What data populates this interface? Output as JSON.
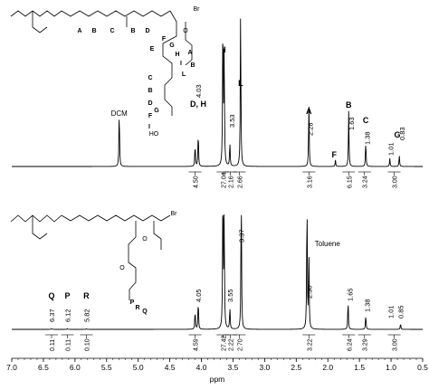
{
  "chart_data": [
    {
      "type": "line",
      "title": "",
      "xlabel": "ppm",
      "ylabel": "",
      "xlim": [
        7.0,
        0.5
      ],
      "x_ticks": [
        "7.0",
        "6.5",
        "6.0",
        "5.5",
        "5.0",
        "4.5",
        "4.0",
        "3.5",
        "3.0",
        "2.5",
        "2.0",
        "1.5",
        "1.0",
        "0.5"
      ],
      "panels": [
        {
          "name": "top",
          "series": [
            {
              "name": "",
              "peaks": [
                {
                  "ppm": 5.3,
                  "height": 0.36
                },
                {
                  "ppm": 4.1,
                  "height": 0.14
                },
                {
                  "ppm": 4.05,
                  "height": 0.22
                },
                {
                  "ppm": 3.66,
                  "height": 0.98
                },
                {
                  "ppm": 3.64,
                  "height": 0.7
                },
                {
                  "ppm": 3.55,
                  "height": 0.15
                },
                {
                  "ppm": 3.38,
                  "height": 0.99
                },
                {
                  "ppm": 2.3,
                  "height": 0.4
                },
                {
                  "ppm": 1.88,
                  "height": 0.04
                },
                {
                  "ppm": 1.67,
                  "height": 0.34
                },
                {
                  "ppm": 1.4,
                  "height": 0.16
                },
                {
                  "ppm": 1.02,
                  "height": 0.05
                },
                {
                  "ppm": 0.87,
                  "height": 0.07
                }
              ]
            }
          ],
          "peak_labels": [
            {
              "ppm": 4.05,
              "value": "4.03"
            },
            {
              "ppm": 3.52,
              "value": "3.53"
            },
            {
              "ppm": 2.28,
              "value": "2.28"
            },
            {
              "ppm": 1.63,
              "value": "1.63"
            },
            {
              "ppm": 1.38,
              "value": "1.38"
            },
            {
              "ppm": 1.01,
              "value": "1.01"
            },
            {
              "ppm": 0.83,
              "value": "0.83"
            }
          ],
          "annotations": [
            {
              "ppm": 5.3,
              "text": "DCM"
            },
            {
              "ppm": 4.05,
              "text": "D, H"
            },
            {
              "ppm": 3.63,
              "text": "I"
            },
            {
              "ppm": 3.38,
              "text": "L"
            },
            {
              "ppm": 2.3,
              "text": "A"
            },
            {
              "ppm": 1.9,
              "text": "F"
            },
            {
              "ppm": 1.67,
              "text": "B"
            },
            {
              "ppm": 1.4,
              "text": "C"
            },
            {
              "ppm": 0.9,
              "text": "G"
            }
          ],
          "integrals": [
            {
              "ppm": 4.1,
              "value": "4.50"
            },
            {
              "ppm": 3.66,
              "value": "27.04"
            },
            {
              "ppm": 3.54,
              "value": "2.16"
            },
            {
              "ppm": 3.4,
              "value": "2.66"
            },
            {
              "ppm": 2.3,
              "value": "3.16"
            },
            {
              "ppm": 1.67,
              "value": "6.15"
            },
            {
              "ppm": 1.42,
              "value": "3.24"
            },
            {
              "ppm": 0.95,
              "value": "3.00"
            }
          ]
        },
        {
          "name": "bottom",
          "series": [
            {
              "name": "",
              "peaks": [
                {
                  "ppm": 6.37,
                  "height": 0.005
                },
                {
                  "ppm": 6.12,
                  "height": 0.005
                },
                {
                  "ppm": 5.82,
                  "height": 0.005
                },
                {
                  "ppm": 4.1,
                  "height": 0.13
                },
                {
                  "ppm": 4.05,
                  "height": 0.2
                },
                {
                  "ppm": 3.66,
                  "height": 0.99
                },
                {
                  "ppm": 3.64,
                  "height": 0.75
                },
                {
                  "ppm": 3.55,
                  "height": 0.15
                },
                {
                  "ppm": 3.37,
                  "height": 0.96
                },
                {
                  "ppm": 2.33,
                  "height": 0.9
                },
                {
                  "ppm": 2.3,
                  "height": 0.5
                },
                {
                  "ppm": 1.68,
                  "height": 0.2
                },
                {
                  "ppm": 1.4,
                  "height": 0.1
                },
                {
                  "ppm": 0.85,
                  "height": 0.04
                }
              ]
            }
          ],
          "peak_labels": [
            {
              "ppm": 6.37,
              "value": "6.37"
            },
            {
              "ppm": 6.12,
              "value": "6.12"
            },
            {
              "ppm": 5.82,
              "value": "5.82"
            },
            {
              "ppm": 4.05,
              "value": "4.05"
            },
            {
              "ppm": 3.55,
              "value": "3.55"
            },
            {
              "ppm": 3.37,
              "value": "3.37"
            },
            {
              "ppm": 2.3,
              "value": "2.30"
            },
            {
              "ppm": 1.65,
              "value": "1.65"
            },
            {
              "ppm": 1.38,
              "value": "1.38"
            },
            {
              "ppm": 1.01,
              "value": "1.01"
            },
            {
              "ppm": 0.85,
              "value": "0.85"
            }
          ],
          "annotations": [
            {
              "ppm": 6.37,
              "text": "Q"
            },
            {
              "ppm": 6.12,
              "text": "P"
            },
            {
              "ppm": 5.82,
              "text": "R"
            },
            {
              "ppm": 2.35,
              "text": "Toluene"
            }
          ],
          "integrals": [
            {
              "ppm": 6.37,
              "value": "0.11"
            },
            {
              "ppm": 6.12,
              "value": "0.11"
            },
            {
              "ppm": 5.82,
              "value": "0.10"
            },
            {
              "ppm": 4.1,
              "value": "4.59"
            },
            {
              "ppm": 3.66,
              "value": "27.42"
            },
            {
              "ppm": 3.54,
              "value": "2.22"
            },
            {
              "ppm": 3.4,
              "value": "2.70"
            },
            {
              "ppm": 2.3,
              "value": "3.22"
            },
            {
              "ppm": 1.67,
              "value": "6.24"
            },
            {
              "ppm": 1.42,
              "value": "3.29"
            },
            {
              "ppm": 0.95,
              "value": "3.00"
            }
          ]
        }
      ],
      "structure_labels": {
        "top": [
          "A",
          "B",
          "C",
          "B",
          "D",
          "E",
          "F",
          "G",
          "H",
          "I",
          "L",
          "A",
          "B",
          "C",
          "B",
          "D",
          "F",
          "G",
          "I",
          "HO",
          "Br",
          "O"
        ],
        "bottom": [
          "O",
          "Br",
          "P",
          "R",
          "Q",
          "O"
        ]
      }
    }
  ],
  "colors": {
    "line": "#000000",
    "text": "#000000"
  }
}
